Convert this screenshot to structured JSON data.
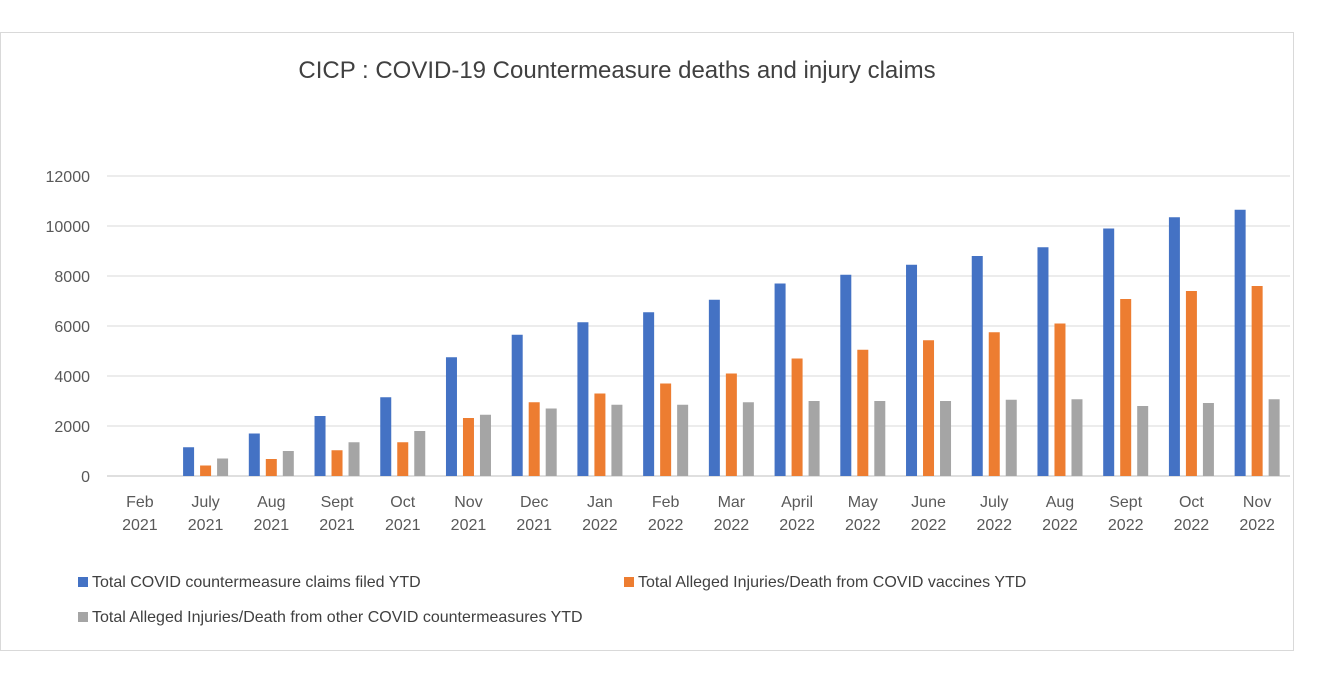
{
  "chart_data": {
    "type": "bar",
    "title": "CICP : COVID-19 Countermeasure deaths and injury claims",
    "categories": [
      [
        "Feb",
        "2021"
      ],
      [
        "July",
        "2021"
      ],
      [
        "Aug",
        "2021"
      ],
      [
        "Sept",
        "2021"
      ],
      [
        "Oct",
        "2021"
      ],
      [
        "Nov",
        "2021"
      ],
      [
        "Dec",
        "2021"
      ],
      [
        "Jan",
        "2022"
      ],
      [
        "Feb",
        "2022"
      ],
      [
        "Mar",
        "2022"
      ],
      [
        "April",
        "2022"
      ],
      [
        "May",
        "2022"
      ],
      [
        "June",
        "2022"
      ],
      [
        "July",
        "2022"
      ],
      [
        "Aug",
        "2022"
      ],
      [
        "Sept",
        "2022"
      ],
      [
        "Oct",
        "2022"
      ],
      [
        "Nov",
        "2022"
      ]
    ],
    "series": [
      {
        "name": "Total COVID countermeasure claims filed YTD",
        "color": "#4472C4",
        "values": [
          0,
          1150,
          1700,
          2400,
          3150,
          4750,
          5650,
          6150,
          6550,
          7050,
          7700,
          8050,
          8450,
          8800,
          9150,
          9900,
          10350,
          10650
        ]
      },
      {
        "name": "Total Alleged Injuries/Death from COVID vaccines YTD",
        "color": "#ED7D31",
        "values": [
          0,
          420,
          680,
          1030,
          1350,
          2320,
          2950,
          3300,
          3700,
          4100,
          4700,
          5050,
          5430,
          5750,
          6100,
          7080,
          7400,
          7600
        ]
      },
      {
        "name": "Total Alleged Injuries/Death from other COVID countermeasures YTD",
        "color": "#A5A5A5",
        "values": [
          0,
          700,
          1000,
          1350,
          1800,
          2450,
          2700,
          2850,
          2850,
          2950,
          3000,
          3000,
          3000,
          3050,
          3070,
          2800,
          2920,
          3070
        ]
      }
    ],
    "yticks": [
      "0",
      "2000",
      "4000",
      "6000",
      "8000",
      "10000",
      "12000"
    ],
    "ylim": [
      0,
      12000
    ],
    "grid": true,
    "legend_position": "bottom"
  }
}
